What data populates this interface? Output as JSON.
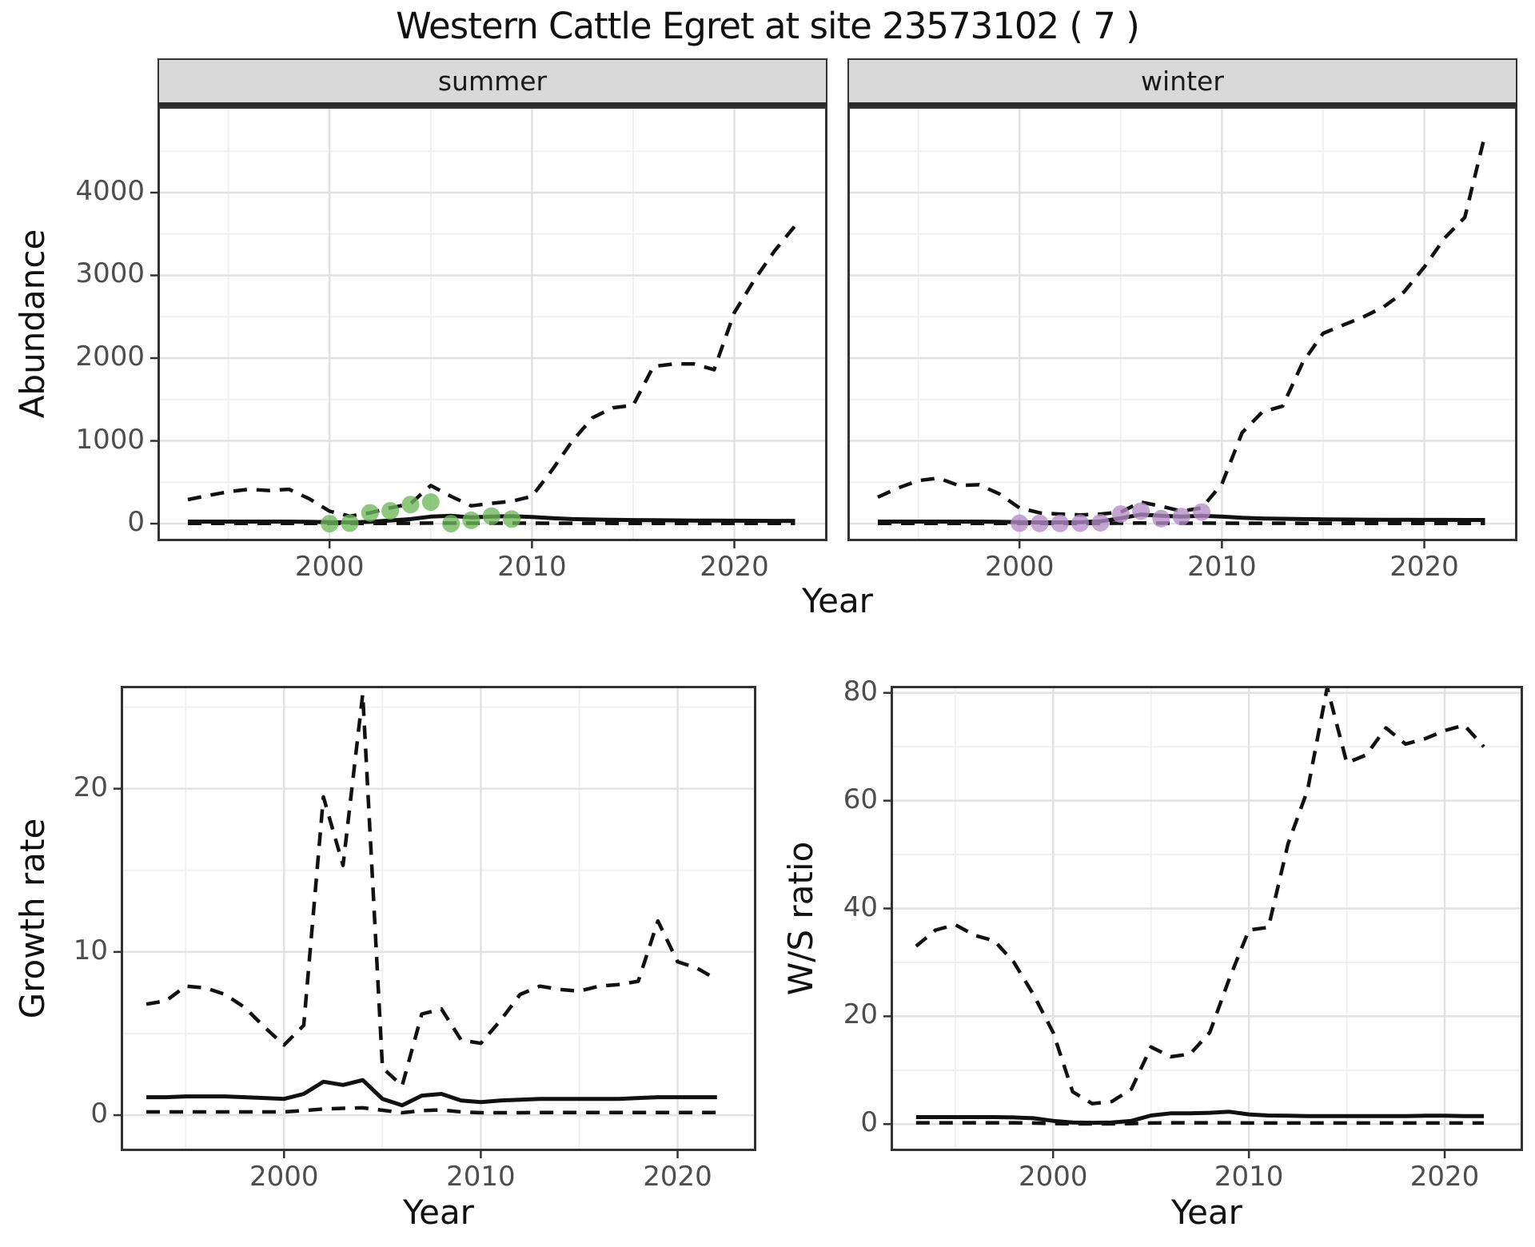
{
  "title": "Western Cattle Egret at site 23573102 ( 7 )",
  "axis_titles": {
    "x_top": "Year",
    "x_growth": "Year",
    "x_ws": "Year",
    "y_abundance": "Abundance",
    "y_growth": "Growth rate",
    "y_ws": "W/S ratio"
  },
  "colors": {
    "summer_points": "#6db85a",
    "winter_points": "#b48cc8",
    "line": "#111111",
    "grid_major": "#e2e2e2",
    "grid_minor": "#f1f1f1",
    "strip_bg": "#d9d9d9",
    "tick_text": "#4d4d4d",
    "panel_border": "#333333"
  },
  "chart_data": [
    {
      "id": "abundance-summer",
      "type": "line",
      "facet_label": "summer",
      "xlabel": "Year",
      "ylabel": "Abundance",
      "x": [
        1993,
        1994,
        1995,
        1996,
        1997,
        1998,
        1999,
        2000,
        2001,
        2002,
        2003,
        2004,
        2005,
        2006,
        2007,
        2008,
        2009,
        2010,
        2011,
        2012,
        2013,
        2014,
        2015,
        2016,
        2017,
        2018,
        2019,
        2020,
        2021,
        2022,
        2023
      ],
      "series": [
        {
          "name": "upper_ci",
          "style": "dashed",
          "values": [
            290,
            340,
            385,
            415,
            400,
            415,
            300,
            150,
            90,
            130,
            190,
            240,
            460,
            330,
            215,
            245,
            270,
            330,
            650,
            1000,
            1280,
            1400,
            1430,
            1900,
            1930,
            1930,
            1860,
            2550,
            2950,
            3300,
            3600
          ]
        },
        {
          "name": "lower_ci",
          "style": "dashed",
          "values": [
            3,
            3,
            3,
            3,
            3,
            3,
            2,
            2,
            2,
            2,
            3,
            4,
            6,
            6,
            5,
            5,
            6,
            5,
            4,
            4,
            4,
            3,
            3,
            3,
            3,
            3,
            3,
            3,
            3,
            3,
            3
          ]
        },
        {
          "name": "estimate",
          "style": "solid",
          "values": [
            25,
            25,
            25,
            25,
            25,
            25,
            22,
            18,
            15,
            22,
            38,
            55,
            85,
            95,
            75,
            85,
            90,
            80,
            65,
            55,
            50,
            46,
            43,
            41,
            39,
            37,
            36,
            35,
            34,
            33,
            33
          ]
        }
      ],
      "points": {
        "name": "summer_observations",
        "color": "#6db85a",
        "x": [
          2000,
          2001,
          2002,
          2003,
          2004,
          2005,
          2006,
          2007,
          2008,
          2009
        ],
        "y": [
          0,
          5,
          130,
          155,
          230,
          260,
          0,
          40,
          90,
          55
        ]
      },
      "xlim": [
        1991.5,
        2024.6
      ],
      "ylim": [
        -212,
        5043
      ],
      "xticks": [
        2000,
        2010,
        2020
      ],
      "xtick_labels": [
        "2000",
        "2010",
        "2020"
      ],
      "xminor": [
        1995,
        2005,
        2015
      ],
      "yticks": [
        0,
        1000,
        2000,
        3000,
        4000
      ],
      "ytick_labels": [
        "0",
        "1000",
        "2000",
        "3000",
        "4000"
      ],
      "yminor": [
        500,
        1500,
        2500,
        3500,
        4500
      ],
      "show_ytick_labels": true
    },
    {
      "id": "abundance-winter",
      "type": "line",
      "facet_label": "winter",
      "xlabel": "Year",
      "ylabel": "Abundance",
      "x": [
        1993,
        1994,
        1995,
        1996,
        1997,
        1998,
        1999,
        2000,
        2001,
        2002,
        2003,
        2004,
        2005,
        2006,
        2007,
        2008,
        2009,
        2010,
        2011,
        2012,
        2013,
        2014,
        2015,
        2016,
        2017,
        2018,
        2019,
        2020,
        2021,
        2022,
        2023
      ],
      "series": [
        {
          "name": "upper_ci",
          "style": "dashed",
          "values": [
            320,
            430,
            520,
            550,
            460,
            470,
            360,
            190,
            130,
            115,
            105,
            115,
            140,
            260,
            210,
            150,
            190,
            480,
            1100,
            1350,
            1420,
            1950,
            2300,
            2400,
            2500,
            2620,
            2800,
            3100,
            3450,
            3700,
            4700
          ]
        },
        {
          "name": "lower_ci",
          "style": "dashed",
          "values": [
            3,
            3,
            3,
            3,
            3,
            3,
            2,
            2,
            2,
            2,
            2,
            3,
            5,
            7,
            6,
            5,
            6,
            5,
            4,
            4,
            4,
            3,
            3,
            3,
            3,
            3,
            3,
            3,
            3,
            3,
            3
          ]
        },
        {
          "name": "estimate",
          "style": "solid",
          "values": [
            25,
            25,
            25,
            25,
            25,
            25,
            22,
            18,
            15,
            15,
            18,
            28,
            65,
            110,
            95,
            85,
            95,
            85,
            70,
            62,
            58,
            55,
            52,
            50,
            48,
            47,
            46,
            45,
            45,
            44,
            44
          ]
        }
      ],
      "points": {
        "name": "winter_observations",
        "color": "#b48cc8",
        "x": [
          2000,
          2001,
          2002,
          2003,
          2004,
          2005,
          2006,
          2007,
          2008,
          2009
        ],
        "y": [
          5,
          3,
          3,
          5,
          10,
          115,
          150,
          60,
          85,
          140
        ]
      },
      "xlim": [
        1991.5,
        2024.6
      ],
      "ylim": [
        -212,
        5043
      ],
      "xticks": [
        2000,
        2010,
        2020
      ],
      "xtick_labels": [
        "2000",
        "2010",
        "2020"
      ],
      "xminor": [
        1995,
        2005,
        2015
      ],
      "yticks": [
        0,
        1000,
        2000,
        3000,
        4000
      ],
      "ytick_labels": [
        "0",
        "1000",
        "2000",
        "3000",
        "4000"
      ],
      "yminor": [
        500,
        1500,
        2500,
        3500,
        4500
      ],
      "show_ytick_labels": false
    },
    {
      "id": "growth-rate",
      "type": "line",
      "facet_label": "",
      "xlabel": "Year",
      "ylabel": "Growth rate",
      "x": [
        1993,
        1994,
        1995,
        1996,
        1997,
        1998,
        1999,
        2000,
        2001,
        2002,
        2003,
        2004,
        2005,
        2006,
        2007,
        2008,
        2009,
        2010,
        2011,
        2012,
        2013,
        2014,
        2015,
        2016,
        2017,
        2018,
        2019,
        2020,
        2021,
        2022
      ],
      "series": [
        {
          "name": "upper_ci",
          "style": "dashed",
          "values": [
            6.8,
            7.0,
            7.9,
            7.8,
            7.4,
            6.6,
            5.4,
            4.3,
            5.5,
            19.5,
            15.3,
            25.8,
            2.9,
            1.8,
            6.2,
            6.5,
            4.6,
            4.4,
            5.8,
            7.4,
            7.9,
            7.7,
            7.6,
            7.9,
            8.0,
            8.2,
            11.9,
            9.4,
            9.0,
            8.3
          ]
        },
        {
          "name": "lower_ci",
          "style": "dashed",
          "values": [
            0.2,
            0.2,
            0.2,
            0.2,
            0.2,
            0.2,
            0.2,
            0.2,
            0.28,
            0.38,
            0.42,
            0.45,
            0.3,
            0.15,
            0.28,
            0.32,
            0.2,
            0.15,
            0.15,
            0.15,
            0.16,
            0.16,
            0.16,
            0.16,
            0.16,
            0.16,
            0.16,
            0.16,
            0.16,
            0.16
          ]
        },
        {
          "name": "estimate",
          "style": "solid",
          "values": [
            1.1,
            1.1,
            1.15,
            1.15,
            1.15,
            1.1,
            1.05,
            1.0,
            1.3,
            2.05,
            1.85,
            2.15,
            1.0,
            0.6,
            1.2,
            1.3,
            0.9,
            0.8,
            0.9,
            0.95,
            1.0,
            1.0,
            1.0,
            1.0,
            1.0,
            1.05,
            1.1,
            1.1,
            1.1,
            1.1
          ]
        }
      ],
      "points": null,
      "xlim": [
        1991.7,
        2024.0
      ],
      "ylim": [
        -2.2,
        26.3
      ],
      "xticks": [
        2000,
        2010,
        2020
      ],
      "xtick_labels": [
        "2000",
        "2010",
        "2020"
      ],
      "xminor": [
        1995,
        2005,
        2015
      ],
      "yticks": [
        0,
        10,
        20
      ],
      "ytick_labels": [
        "0",
        "10",
        "20"
      ],
      "yminor": [
        5,
        15,
        25
      ],
      "show_ytick_labels": true
    },
    {
      "id": "ws-ratio",
      "type": "line",
      "facet_label": "",
      "xlabel": "Year",
      "ylabel": "W/S ratio",
      "x": [
        1993,
        1994,
        1995,
        1996,
        1997,
        1998,
        1999,
        2000,
        2001,
        2002,
        2003,
        2004,
        2005,
        2006,
        2007,
        2008,
        2009,
        2010,
        2011,
        2012,
        2013,
        2014,
        2015,
        2016,
        2017,
        2018,
        2019,
        2020,
        2021,
        2022
      ],
      "series": [
        {
          "name": "upper_ci",
          "style": "dashed",
          "values": [
            33,
            36,
            37,
            35,
            34,
            30,
            24,
            17,
            6,
            3.8,
            4.2,
            6.5,
            14.3,
            12.5,
            13,
            17,
            27,
            36,
            36.5,
            52,
            62,
            81,
            67,
            68.5,
            73.5,
            70.5,
            71.5,
            73,
            74,
            70
          ]
        },
        {
          "name": "lower_ci",
          "style": "dashed",
          "values": [
            0.25,
            0.25,
            0.25,
            0.25,
            0.25,
            0.25,
            0.2,
            0.1,
            0.05,
            0.05,
            0.05,
            0.1,
            0.2,
            0.25,
            0.25,
            0.25,
            0.25,
            0.2,
            0.2,
            0.2,
            0.2,
            0.2,
            0.2,
            0.2,
            0.2,
            0.2,
            0.2,
            0.2,
            0.2,
            0.2
          ]
        },
        {
          "name": "estimate",
          "style": "solid",
          "values": [
            1.3,
            1.3,
            1.3,
            1.3,
            1.3,
            1.25,
            1.1,
            0.6,
            0.3,
            0.25,
            0.3,
            0.6,
            1.6,
            2.0,
            2.0,
            2.1,
            2.3,
            1.8,
            1.6,
            1.55,
            1.5,
            1.5,
            1.5,
            1.5,
            1.5,
            1.5,
            1.55,
            1.55,
            1.5,
            1.5
          ]
        }
      ],
      "points": null,
      "xlim": [
        1991.7,
        2024.0
      ],
      "ylim": [
        -5.0,
        81.3
      ],
      "xticks": [
        2000,
        2010,
        2020
      ],
      "xtick_labels": [
        "2000",
        "2010",
        "2020"
      ],
      "xminor": [
        1995,
        2005,
        2015
      ],
      "yticks": [
        0,
        20,
        40,
        60,
        80
      ],
      "ytick_labels": [
        "0",
        "20",
        "40",
        "60",
        "80"
      ],
      "yminor": [
        10,
        30,
        50,
        70
      ],
      "show_ytick_labels": true
    }
  ]
}
